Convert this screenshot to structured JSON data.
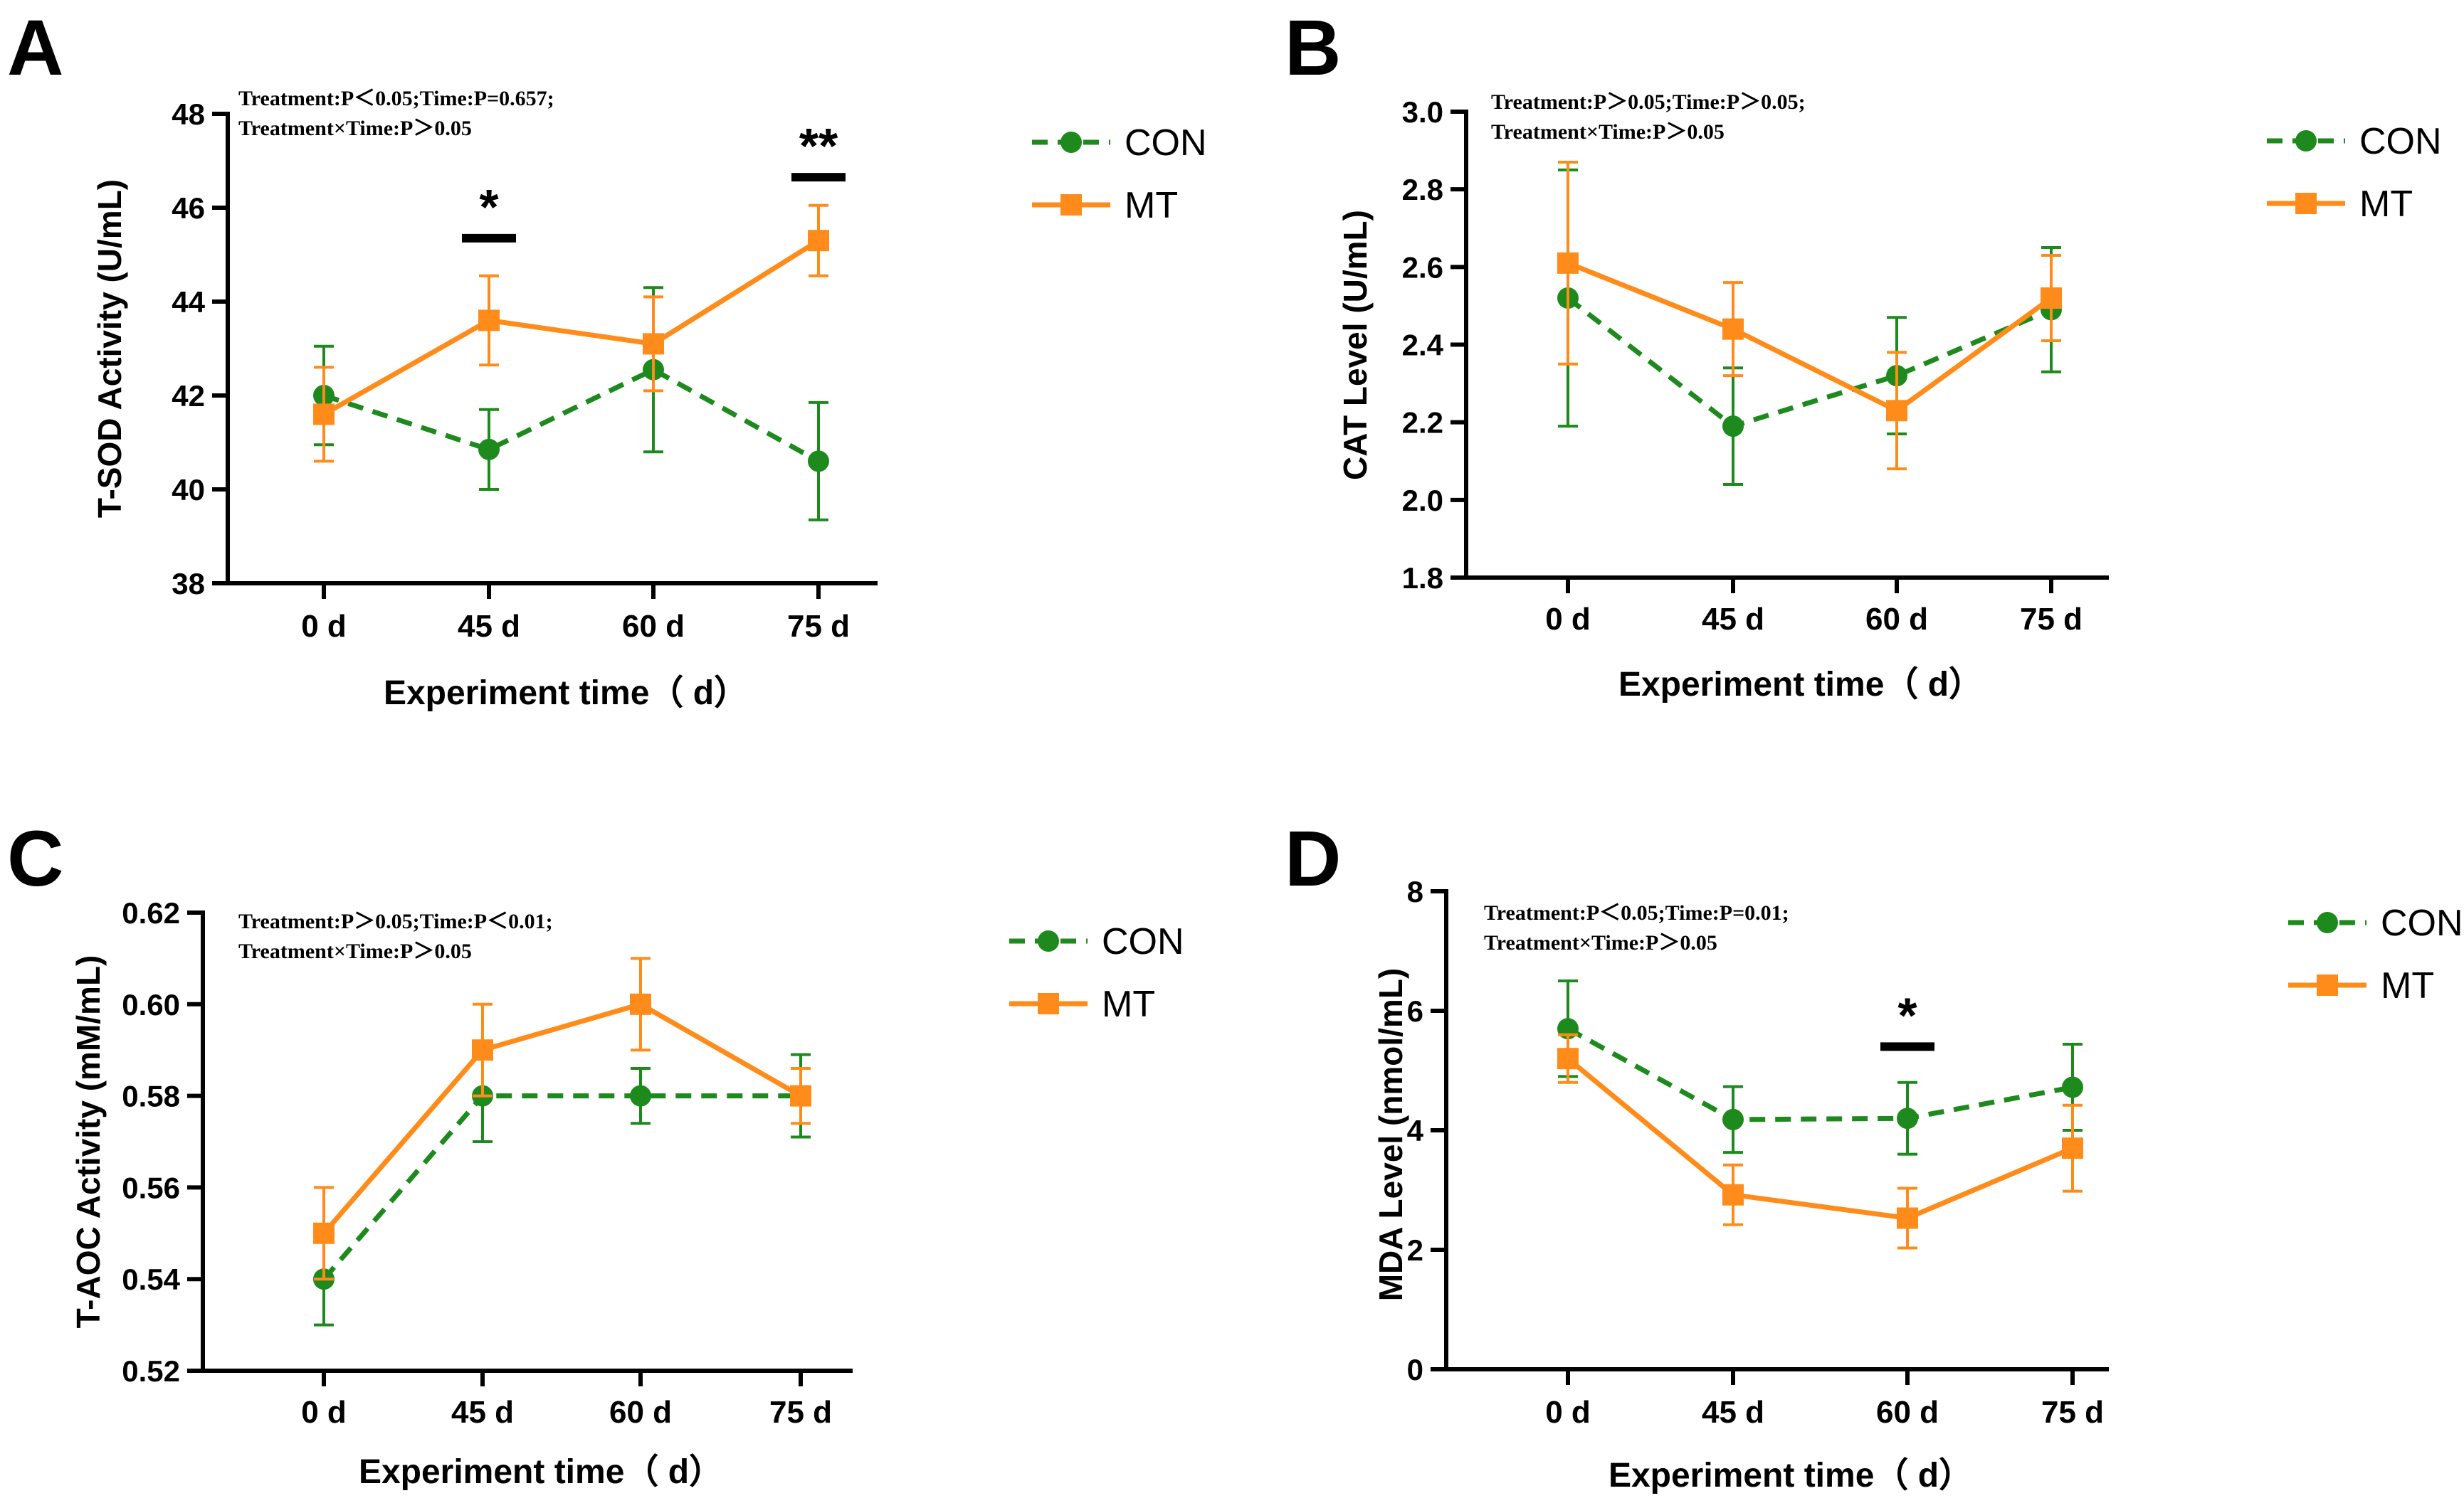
{
  "chart_data": [
    {
      "panel": "A",
      "type": "line",
      "stats_lines": [
        "Treatment:P＜0.05;Time:P=0.657;",
        "Treatment×Time:P＞0.05"
      ],
      "ylabel": "T-SOD Activity (U/mL)",
      "xlabel": "Experiment time（ d）",
      "categories": [
        "0 d",
        "45 d",
        "60 d",
        "75 d"
      ],
      "ylim": [
        38,
        48
      ],
      "yticks": [
        38,
        40,
        42,
        44,
        46,
        48
      ],
      "ytick_labels": [
        "38",
        "40",
        "42",
        "44",
        "46",
        "48"
      ],
      "series": [
        {
          "name": "CON",
          "color": "#1e8a1e",
          "marker": "circle",
          "dash": true,
          "values": [
            42.0,
            40.85,
            42.55,
            40.6
          ],
          "errors": [
            1.05,
            0.85,
            1.75,
            1.25
          ]
        },
        {
          "name": "MT",
          "color": "#ff8c1a",
          "marker": "square",
          "dash": false,
          "values": [
            41.6,
            43.6,
            43.1,
            45.3
          ],
          "errors": [
            1.0,
            0.95,
            1.0,
            0.75
          ]
        }
      ],
      "significance": [
        {
          "category_index": 1,
          "label": "*",
          "y": 45.35
        },
        {
          "category_index": 3,
          "label": "**",
          "y": 46.65
        }
      ]
    },
    {
      "panel": "B",
      "type": "line",
      "stats_lines": [
        "Treatment:P＞0.05;Time:P＞0.05;",
        "Treatment×Time:P＞0.05"
      ],
      "ylabel": "CAT Level (U/mL)",
      "xlabel": "Experiment time（ d）",
      "categories": [
        "0 d",
        "45 d",
        "60 d",
        "75 d"
      ],
      "ylim": [
        1.8,
        3.0
      ],
      "yticks": [
        1.8,
        2.0,
        2.2,
        2.4,
        2.6,
        2.8,
        3.0
      ],
      "ytick_labels": [
        "1.8",
        "2.0",
        "2.2",
        "2.4",
        "2.6",
        "2.8",
        "3.0"
      ],
      "series": [
        {
          "name": "CON",
          "color": "#1e8a1e",
          "marker": "circle",
          "dash": true,
          "values": [
            2.52,
            2.19,
            2.32,
            2.49
          ],
          "errors": [
            0.33,
            0.15,
            0.15,
            0.16
          ]
        },
        {
          "name": "MT",
          "color": "#ff8c1a",
          "marker": "square",
          "dash": false,
          "values": [
            2.61,
            2.44,
            2.23,
            2.52
          ],
          "errors": [
            0.26,
            0.12,
            0.15,
            0.11
          ]
        }
      ],
      "significance": []
    },
    {
      "panel": "C",
      "type": "line",
      "stats_lines": [
        "Treatment:P＞0.05;Time:P＜0.01;",
        "Treatment×Time:P＞0.05"
      ],
      "ylabel": "T-AOC Activity (mM/mL)",
      "xlabel": "Experiment time（ d）",
      "categories": [
        "0 d",
        "45 d",
        "60 d",
        "75 d"
      ],
      "ylim": [
        0.52,
        0.62
      ],
      "yticks": [
        0.52,
        0.54,
        0.56,
        0.58,
        0.6,
        0.62
      ],
      "ytick_labels": [
        "0.52",
        "0.54",
        "0.56",
        "0.58",
        "0.60",
        "0.62"
      ],
      "series": [
        {
          "name": "CON",
          "color": "#1e8a1e",
          "marker": "circle",
          "dash": true,
          "values": [
            0.54,
            0.58,
            0.58,
            0.58
          ],
          "errors": [
            0.01,
            0.01,
            0.006,
            0.009
          ]
        },
        {
          "name": "MT",
          "color": "#ff8c1a",
          "marker": "square",
          "dash": false,
          "values": [
            0.55,
            0.59,
            0.6,
            0.58
          ],
          "errors": [
            0.01,
            0.01,
            0.01,
            0.006
          ]
        }
      ],
      "significance": []
    },
    {
      "panel": "D",
      "type": "line",
      "stats_lines": [
        "Treatment:P＜0.05;Time:P=0.01;",
        "Treatment×Time:P＞0.05"
      ],
      "ylabel": "MDA Level (nmol/mL)",
      "xlabel": "Experiment time（ d）",
      "categories": [
        "0 d",
        "45 d",
        "60 d",
        "75 d"
      ],
      "ylim": [
        0,
        8
      ],
      "yticks": [
        0,
        2,
        4,
        6,
        8
      ],
      "ytick_labels": [
        "0",
        "2",
        "4",
        "6",
        "8"
      ],
      "series": [
        {
          "name": "CON",
          "color": "#1e8a1e",
          "marker": "circle",
          "dash": true,
          "values": [
            5.7,
            4.18,
            4.2,
            4.72
          ],
          "errors": [
            0.8,
            0.55,
            0.6,
            0.72
          ]
        },
        {
          "name": "MT",
          "color": "#ff8c1a",
          "marker": "square",
          "dash": false,
          "values": [
            5.2,
            2.92,
            2.53,
            3.7
          ],
          "errors": [
            0.4,
            0.5,
            0.5,
            0.72
          ]
        }
      ],
      "significance": [
        {
          "category_index": 2,
          "label": "*",
          "y": 5.4
        }
      ]
    }
  ]
}
